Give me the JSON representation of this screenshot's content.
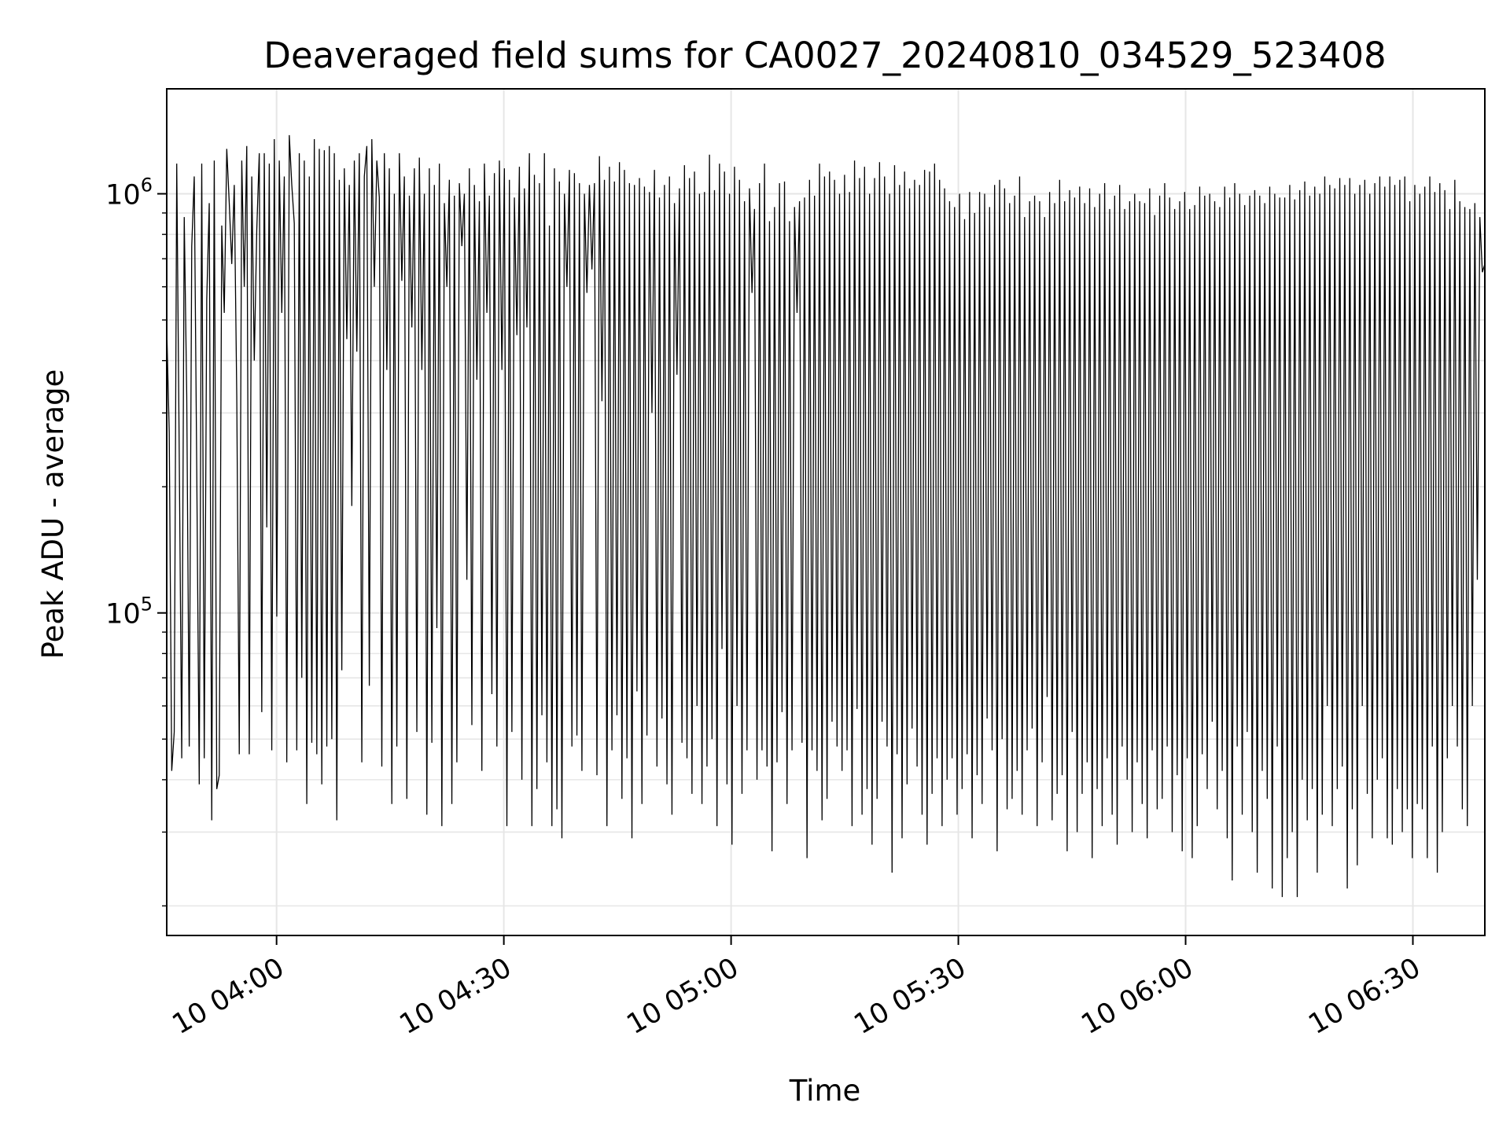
{
  "chart_data": {
    "type": "line",
    "title": "Deaveraged field sums for CA0027_20240810_034529_523408",
    "xlabel": "Time",
    "ylabel": "Peak ADU - average",
    "x_scale": "time",
    "y_scale": "log",
    "xlim": [
      "2024-08-10T03:45:30",
      "2024-08-10T06:39:30"
    ],
    "ylim": [
      17000,
      1780000
    ],
    "x_ticks": [
      {
        "t": "2024-08-10T04:00:00",
        "label": "10 04:00"
      },
      {
        "t": "2024-08-10T04:30:00",
        "label": "10 04:30"
      },
      {
        "t": "2024-08-10T05:00:00",
        "label": "10 05:00"
      },
      {
        "t": "2024-08-10T05:30:00",
        "label": "10 05:30"
      },
      {
        "t": "2024-08-10T06:00:00",
        "label": "10 06:00"
      },
      {
        "t": "2024-08-10T06:30:00",
        "label": "10 06:30"
      }
    ],
    "y_ticks": [
      {
        "value": 100000,
        "base": "10",
        "exp": "5"
      },
      {
        "value": 1000000,
        "base": "10",
        "exp": "6"
      }
    ],
    "grid": true,
    "line_color": "#000000",
    "grid_color": "#e6e6e6",
    "series": [
      {
        "x_start": "2024-08-10T03:45:30",
        "x_end": "2024-08-10T06:39:30",
        "values": [
          480000,
          270000,
          42000,
          52000,
          1180000,
          240000,
          45000,
          880000,
          330000,
          48000,
          750000,
          1100000,
          220000,
          39000,
          1180000,
          45000,
          560000,
          950000,
          32000,
          1200000,
          38000,
          41000,
          840000,
          520000,
          1280000,
          950000,
          680000,
          1050000,
          330000,
          46000,
          1200000,
          600000,
          1300000,
          46000,
          1100000,
          400000,
          820000,
          1250000,
          58000,
          1250000,
          160000,
          1180000,
          47000,
          1350000,
          98000,
          1200000,
          520000,
          1100000,
          44000,
          1380000,
          1050000,
          850000,
          47000,
          1250000,
          70000,
          1200000,
          35000,
          1100000,
          49000,
          1350000,
          46000,
          1280000,
          39000,
          1270000,
          48000,
          1300000,
          50000,
          1250000,
          32000,
          1080000,
          73000,
          1150000,
          450000,
          1050000,
          180000,
          1200000,
          420000,
          1250000,
          44000,
          1100000,
          1300000,
          67000,
          1350000,
          600000,
          1200000,
          980000,
          43000,
          1250000,
          380000,
          1150000,
          35000,
          1000000,
          48000,
          1250000,
          620000,
          1100000,
          36000,
          990000,
          480000,
          1150000,
          52000,
          1220000,
          380000,
          1000000,
          33000,
          1150000,
          49000,
          1050000,
          92000,
          1180000,
          31000,
          950000,
          600000,
          1080000,
          35000,
          990000,
          44000,
          1060000,
          750000,
          1000000,
          120000,
          1150000,
          54000,
          1050000,
          360000,
          960000,
          42000,
          1180000,
          520000,
          990000,
          64000,
          1120000,
          48000,
          1200000,
          380000,
          1150000,
          31000,
          1080000,
          52000,
          980000,
          460000,
          1160000,
          40000,
          1030000,
          480000,
          1250000,
          31000,
          1110000,
          38000,
          1060000,
          57000,
          1250000,
          44000,
          840000,
          31000,
          1150000,
          34000,
          1070000,
          29000,
          1000000,
          600000,
          1140000,
          48000,
          1120000,
          51000,
          1060000,
          42000,
          1000000,
          580000,
          1050000,
          660000,
          1060000,
          41000,
          1230000,
          320000,
          1080000,
          31000,
          1160000,
          47000,
          1070000,
          57000,
          1190000,
          36000,
          1140000,
          45000,
          1060000,
          29000,
          1050000,
          65000,
          1090000,
          35000,
          1040000,
          51000,
          1010000,
          300000,
          1140000,
          43000,
          980000,
          56000,
          1050000,
          39000,
          1100000,
          33000,
          950000,
          370000,
          1030000,
          49000,
          1170000,
          45000,
          1090000,
          37000,
          1130000,
          60000,
          1000000,
          35000,
          1010000,
          43000,
          1240000,
          50000,
          1020000,
          31000,
          1180000,
          82000,
          1130000,
          39000,
          1000000,
          28000,
          1160000,
          60000,
          1080000,
          37000,
          960000,
          47000,
          1030000,
          580000,
          920000,
          40000,
          1060000,
          47000,
          1180000,
          43000,
          860000,
          27000,
          930000,
          44000,
          1060000,
          58000,
          1070000,
          35000,
          860000,
          47000,
          930000,
          520000,
          960000,
          49000,
          980000,
          26000,
          1080000,
          47000,
          990000,
          42000,
          1180000,
          32000,
          1100000,
          36000,
          1130000,
          55000,
          1080000,
          48000,
          1000000,
          42000,
          1110000,
          47000,
          1010000,
          31000,
          1200000,
          59000,
          1090000,
          33000,
          1160000,
          38000,
          1000000,
          28000,
          1090000,
          36000,
          1190000,
          55000,
          1100000,
          48000,
          1000000,
          24000,
          1170000,
          46000,
          1050000,
          29000,
          1130000,
          39000,
          1030000,
          53000,
          1080000,
          43000,
          1050000,
          33000,
          1140000,
          28000,
          1130000,
          37000,
          1180000,
          45000,
          1080000,
          31000,
          1030000,
          40000,
          960000,
          45000,
          930000,
          33000,
          1000000,
          38000,
          870000,
          46000,
          1010000,
          29000,
          900000,
          41000,
          1010000,
          35000,
          1000000,
          56000,
          930000,
          47000,
          1050000,
          27000,
          1080000,
          50000,
          1030000,
          34000,
          950000,
          36000,
          990000,
          42000,
          1100000,
          33000,
          880000,
          47000,
          960000,
          53000,
          990000,
          31000,
          960000,
          44000,
          880000,
          63000,
          1010000,
          32000,
          950000,
          37000,
          1080000,
          41000,
          960000,
          27000,
          1020000,
          52000,
          980000,
          30000,
          1040000,
          37000,
          950000,
          44000,
          1030000,
          26000,
          930000,
          38000,
          1000000,
          31000,
          1060000,
          45000,
          920000,
          33000,
          990000,
          28000,
          1050000,
          48000,
          920000,
          40000,
          960000,
          30000,
          1000000,
          44000,
          960000,
          35000,
          950000,
          29000,
          1030000,
          47000,
          890000,
          34000,
          990000,
          36000,
          1060000,
          48000,
          980000,
          30000,
          920000,
          41000,
          960000,
          27000,
          1010000,
          45000,
          920000,
          26000,
          940000,
          31000,
          1040000,
          46000,
          990000,
          38000,
          1000000,
          55000,
          960000,
          34000,
          930000,
          42000,
          1040000,
          29000,
          980000,
          23000,
          1060000,
          48000,
          1000000,
          33000,
          940000,
          52000,
          990000,
          30000,
          1020000,
          24000,
          990000,
          42000,
          950000,
          36000,
          1040000,
          22000,
          1000000,
          48000,
          980000,
          21000,
          980000,
          26000,
          1050000,
          30000,
          970000,
          21000,
          1020000,
          40000,
          1070000,
          32000,
          990000,
          38000,
          1040000,
          24000,
          1000000,
          33000,
          1100000,
          60000,
          1050000,
          31000,
          1030000,
          38000,
          1090000,
          43000,
          1050000,
          22000,
          1090000,
          34000,
          1000000,
          25000,
          1050000,
          60000,
          1080000,
          37000,
          1000000,
          29000,
          1060000,
          40000,
          1100000,
          45000,
          1040000,
          29000,
          1100000,
          28000,
          1050000,
          38000,
          1080000,
          30000,
          1100000,
          34000,
          960000,
          26000,
          1050000,
          35000,
          1000000,
          34000,
          1040000,
          26000,
          1100000,
          48000,
          1010000,
          24000,
          1060000,
          30000,
          1020000,
          45000,
          920000,
          60000,
          1080000,
          48000,
          960000,
          34000,
          930000,
          31000,
          920000,
          60000,
          950000,
          120000,
          880000,
          650000,
          680000
        ]
      }
    ]
  }
}
